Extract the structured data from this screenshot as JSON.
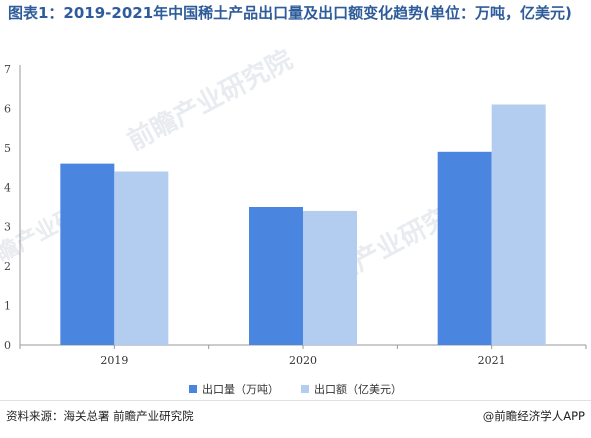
{
  "title": "图表1：2019-2021年中国稀土产品出口量及出口额变化趋势(单位：万吨，亿美元)",
  "watermark": "前瞻产业研究院",
  "footer": {
    "source": "资料来源：海关总署 前瞻产业研究院",
    "brand": "@前瞻经济学人APP"
  },
  "colors": {
    "series_volume": "#4a86e0",
    "series_value": "#b3cdf0",
    "axis": "#999999",
    "grid": "#e6e6e6",
    "title": "#2e5c9a"
  },
  "chart_data": {
    "type": "bar",
    "title": "图表1：2019-2021年中国稀土产品出口量及出口额变化趋势(单位：万吨，亿美元)",
    "categories": [
      "2019",
      "2020",
      "2021"
    ],
    "series": [
      {
        "name": "出口量（万吨）",
        "values": [
          4.6,
          3.5,
          4.9
        ]
      },
      {
        "name": "出口额（亿美元）",
        "values": [
          4.4,
          3.4,
          6.1
        ]
      }
    ],
    "yticks": [
      "0",
      "1",
      "2",
      "3",
      "4",
      "5",
      "6",
      "7"
    ],
    "ylim": [
      0,
      7
    ],
    "xlabel": "",
    "ylabel": "",
    "legend": "bottom",
    "grid": false
  }
}
